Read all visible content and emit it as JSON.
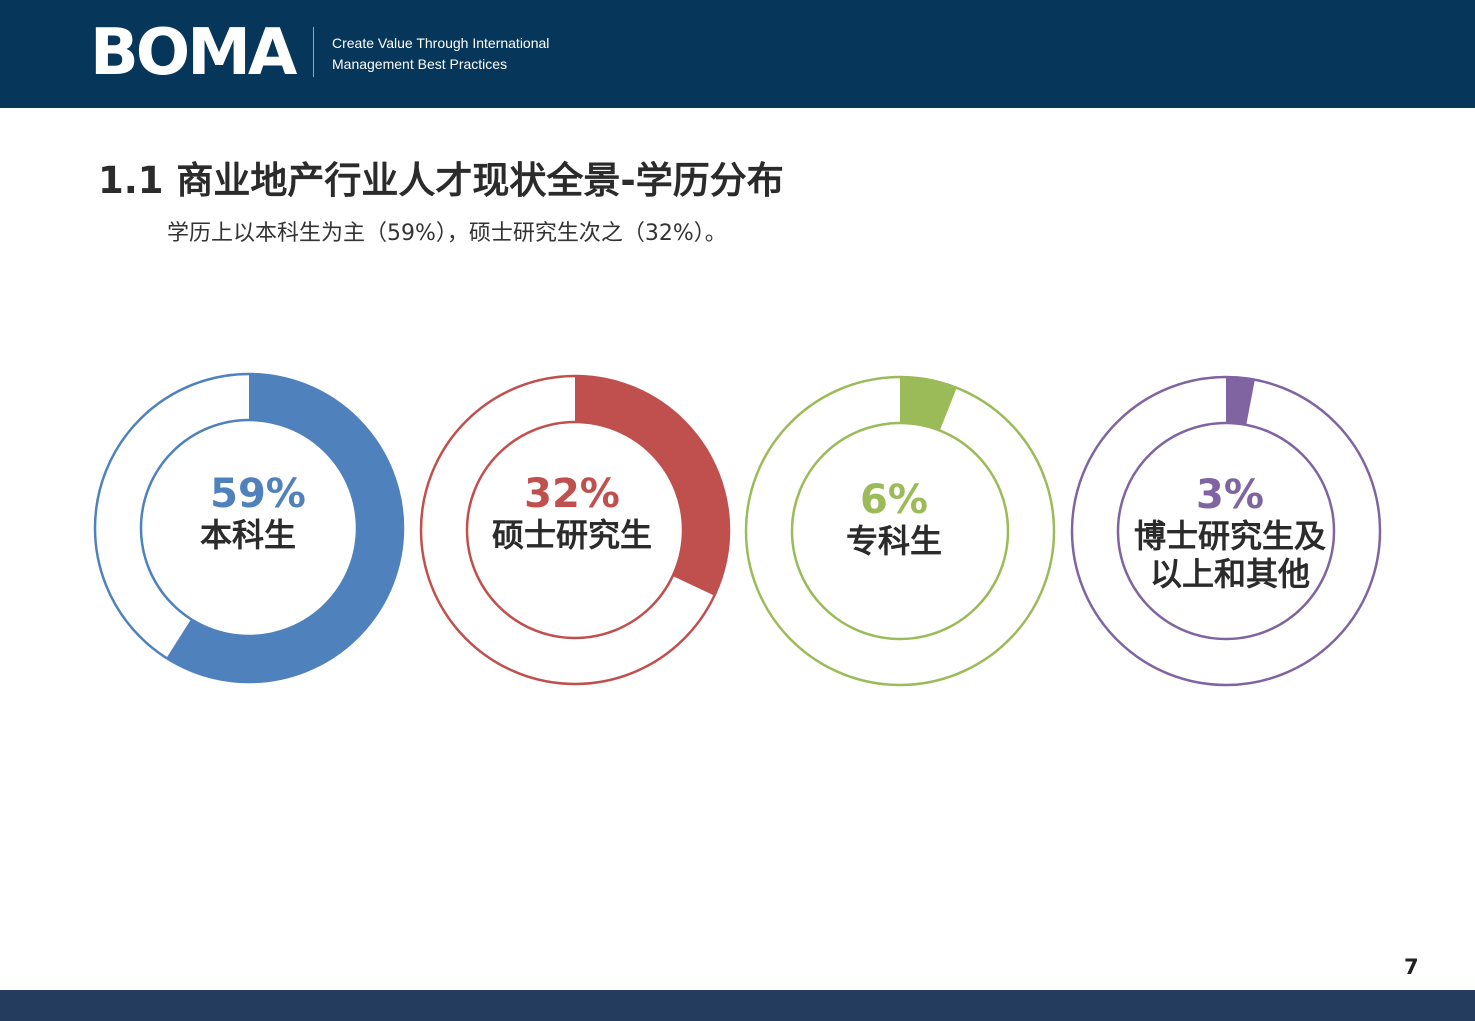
{
  "header": {
    "logo_text": "BOMA",
    "tagline_line1": "Create Value Through International",
    "tagline_line2": "Management Best Practices",
    "background_color": "#063659"
  },
  "title": "1.1 商业地产行业人才现状全景-学历分布",
  "subtitle": "学历上以本科生为主（59%），硕士研究生次之（32%）。",
  "page_number": "7",
  "chart_data": [
    {
      "type": "pie",
      "style": "donut",
      "label": "本科生",
      "percent_text": "59%",
      "value": 59,
      "color": "#4f81bd"
    },
    {
      "type": "pie",
      "style": "donut",
      "label": "硕士研究生",
      "percent_text": "32%",
      "value": 32,
      "color": "#c0504d"
    },
    {
      "type": "pie",
      "style": "donut",
      "label": "专科生",
      "percent_text": "6%",
      "value": 6,
      "color": "#9bbb59"
    },
    {
      "type": "pie",
      "style": "donut",
      "label": "博士研究生及以上和其他",
      "label_lines": [
        "博士研究生及",
        "以上和其他"
      ],
      "percent_text": "3%",
      "value": 3,
      "color": "#8064a2"
    }
  ]
}
